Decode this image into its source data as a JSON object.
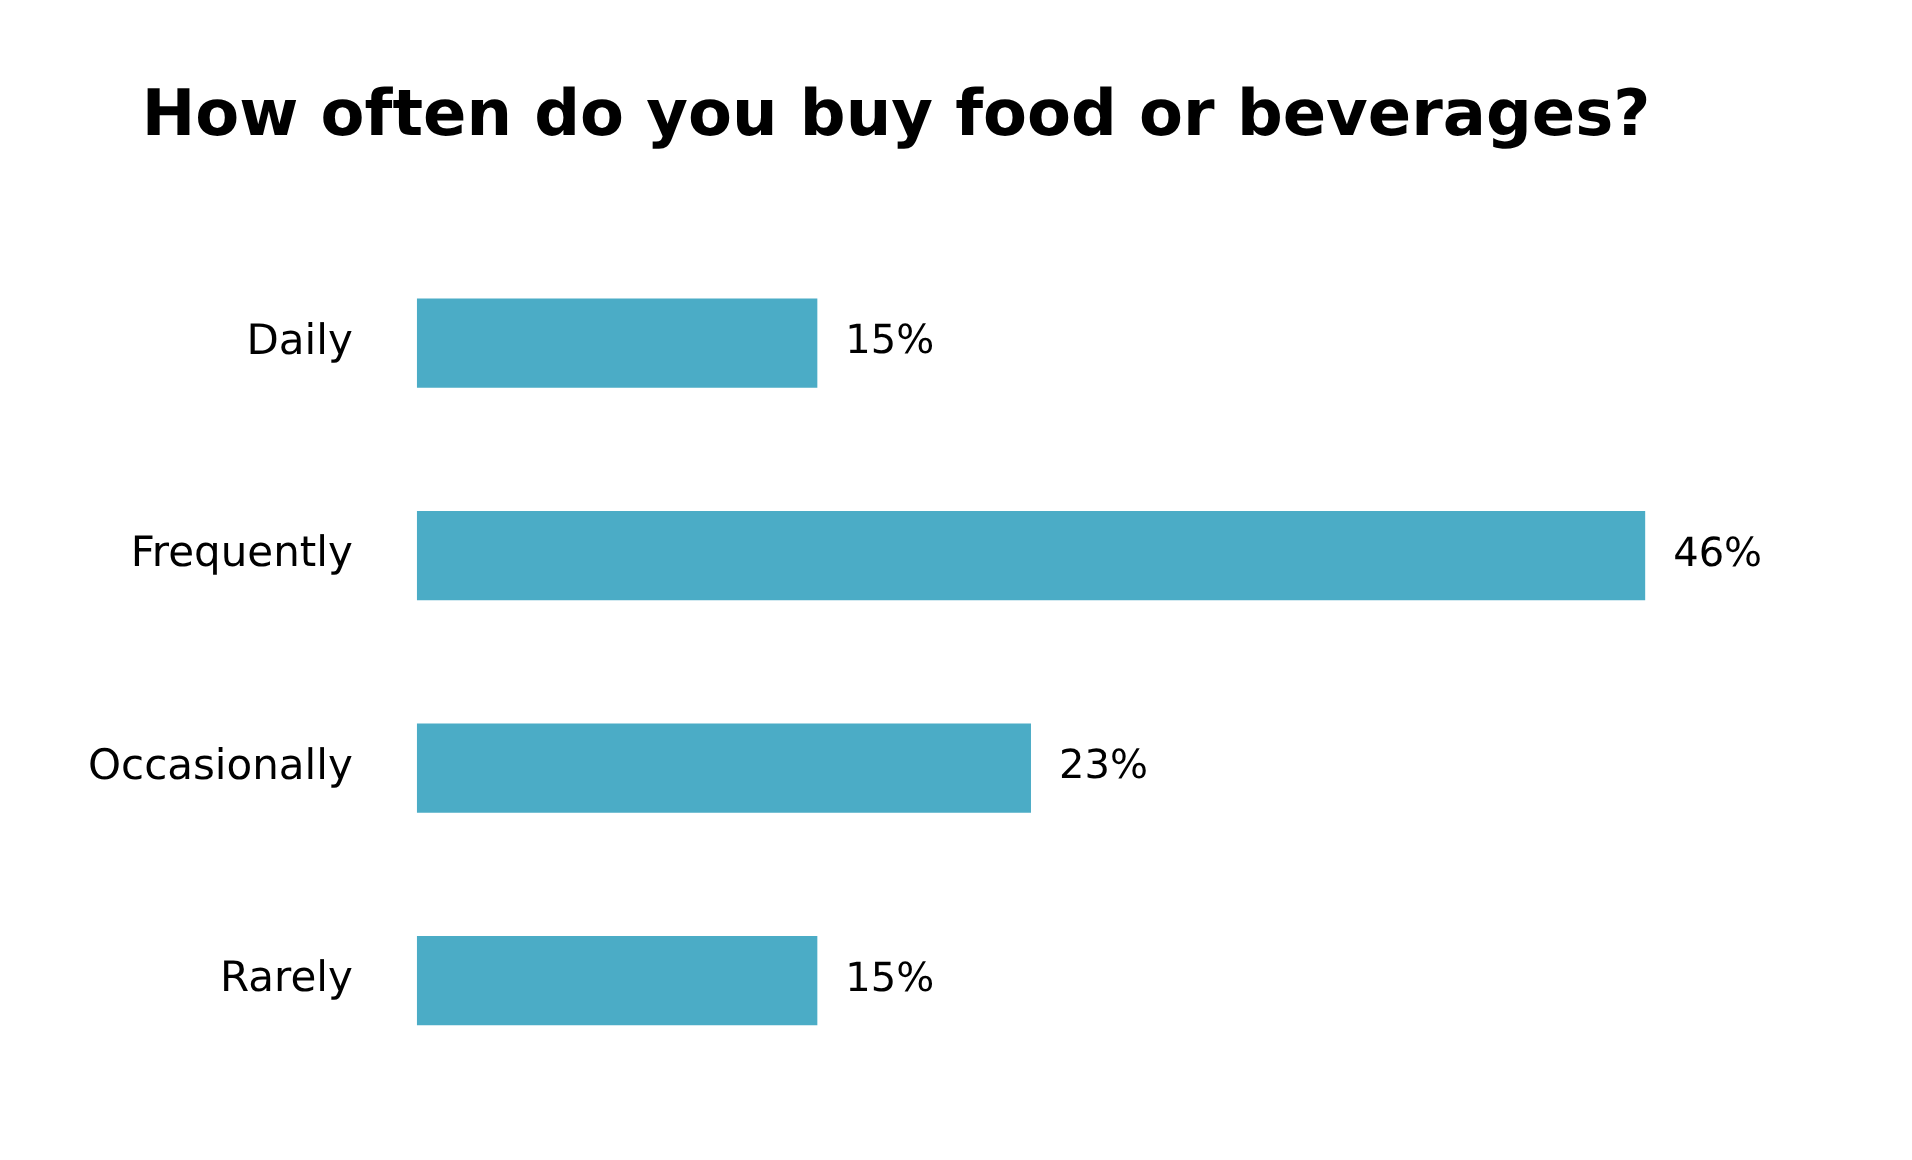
{
  "chart_data": {
    "type": "bar",
    "orientation": "horizontal",
    "title": "How often do you buy food or beverages?",
    "categories": [
      "Daily",
      "Frequently",
      "Occasionally",
      "Rarely"
    ],
    "values": [
      15,
      46,
      23,
      15
    ],
    "value_labels": [
      "15%",
      "46%",
      "23%",
      "15%"
    ],
    "color": "#4bacc6",
    "legend": false
  }
}
